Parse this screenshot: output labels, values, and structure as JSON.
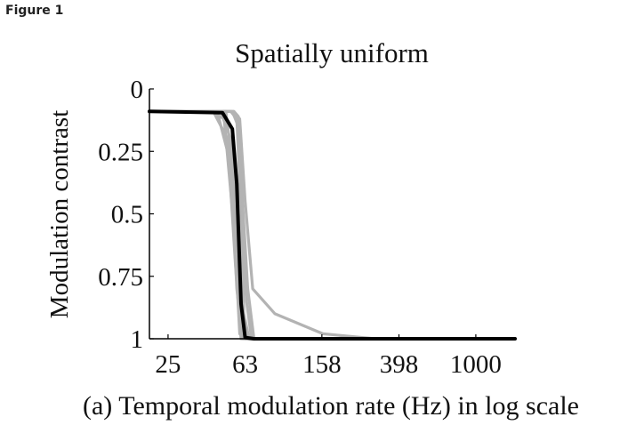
{
  "figure_label": "Figure 1",
  "chart_data": {
    "type": "line",
    "title": "Spatially uniform",
    "xlabel": "(a) Temporal modulation rate (Hz) in log scale",
    "ylabel": "Modulation contrast",
    "x_scale": "log",
    "xlim": [
      20,
      1600
    ],
    "ylim": [
      0,
      1
    ],
    "y_inverted": true,
    "x_ticks": [
      25,
      63,
      158,
      398,
      1000
    ],
    "x_tick_labels": [
      "25",
      "63",
      "158",
      "398",
      "1000"
    ],
    "y_ticks": [
      0,
      0.25,
      0.5,
      0.75,
      1
    ],
    "y_tick_labels": [
      "0",
      "0.25",
      "0.5",
      "0.75",
      "1"
    ],
    "grid": false,
    "colors": {
      "individual": "#b3b3b3",
      "mean": "#000000",
      "axis": "#000000"
    },
    "series": [
      {
        "role": "individual",
        "x": [
          20,
          42,
          49,
          55,
          59,
          63,
          1600
        ],
        "y": [
          0.09,
          0.09,
          0.12,
          0.55,
          0.98,
          1.0,
          1.0
        ]
      },
      {
        "role": "individual",
        "x": [
          20,
          43,
          51,
          56,
          60,
          1600
        ],
        "y": [
          0.09,
          0.09,
          0.2,
          0.7,
          1.0,
          1.0
        ]
      },
      {
        "role": "individual",
        "x": [
          20,
          45,
          53,
          57,
          61,
          1600
        ],
        "y": [
          0.09,
          0.09,
          0.3,
          0.8,
          1.0,
          1.0
        ]
      },
      {
        "role": "individual",
        "x": [
          20,
          47,
          54,
          59,
          63,
          1600
        ],
        "y": [
          0.09,
          0.09,
          0.22,
          0.85,
          1.0,
          1.0
        ]
      },
      {
        "role": "individual",
        "x": [
          20,
          50,
          56,
          61,
          64,
          1600
        ],
        "y": [
          0.09,
          0.09,
          0.4,
          0.95,
          1.0,
          1.0
        ]
      },
      {
        "role": "individual",
        "x": [
          20,
          53,
          57,
          60,
          62,
          66,
          1600
        ],
        "y": [
          0.09,
          0.09,
          0.12,
          0.5,
          0.9,
          1.0,
          1.0
        ]
      },
      {
        "role": "individual",
        "x": [
          20,
          54,
          58,
          61,
          64,
          68,
          1600
        ],
        "y": [
          0.09,
          0.09,
          0.15,
          0.6,
          0.85,
          1.0,
          1.0
        ]
      },
      {
        "role": "individual",
        "x": [
          20,
          55,
          58,
          61,
          65,
          70,
          1600
        ],
        "y": [
          0.09,
          0.09,
          0.11,
          0.45,
          0.8,
          1.0,
          1.0
        ]
      },
      {
        "role": "individual",
        "x": [
          20,
          55,
          59,
          63,
          69,
          90,
          160,
          300,
          1600
        ],
        "y": [
          0.09,
          0.09,
          0.12,
          0.45,
          0.8,
          0.9,
          0.98,
          1.0,
          1.0
        ]
      },
      {
        "role": "mean",
        "x": [
          20,
          48,
          54,
          57,
          60,
          63,
          70,
          1600
        ],
        "y": [
          0.09,
          0.095,
          0.16,
          0.38,
          0.86,
          0.995,
          1.0,
          1.0
        ]
      }
    ]
  }
}
